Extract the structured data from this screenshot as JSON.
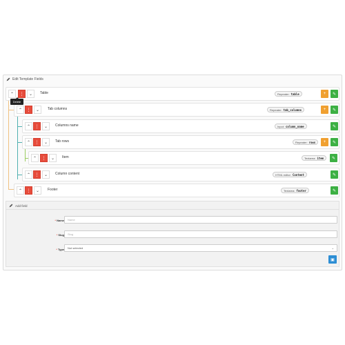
{
  "panel": {
    "title": "Edit Template Fields"
  },
  "tooltip": {
    "text": "Delete"
  },
  "rows": [
    {
      "label": "Table",
      "badge_type": "Repeater:",
      "badge_code": "table",
      "has_add": true
    },
    {
      "label": "Tab columns",
      "badge_type": "Repeater:",
      "badge_code": "tab_columns",
      "has_add": true
    },
    {
      "label": "Columns name",
      "badge_type": "Input:",
      "badge_code": "column_name",
      "has_add": false
    },
    {
      "label": "Tab rows",
      "badge_type": "Repeater:",
      "badge_code": "rows",
      "has_add": true
    },
    {
      "label": "Item",
      "badge_type": "Textarea:",
      "badge_code": "item",
      "has_add": false
    },
    {
      "label": "Column content",
      "badge_type": "HTML editor:",
      "badge_code": "Content",
      "has_add": false
    },
    {
      "label": "Footer",
      "badge_type": "Textarea:",
      "badge_code": "footer",
      "has_add": false
    }
  ],
  "add_field": {
    "title": "Add field",
    "name_label": "Name",
    "name_placeholder": "Name",
    "slug_label": "Slug",
    "slug_placeholder": "Slug",
    "type_label": "Type",
    "type_value": "Not selected"
  },
  "icons": {
    "up": "chevron-up-icon",
    "down": "chevron-down-icon",
    "delete": "trash-icon",
    "add": "plus-icon",
    "edit": "pencil-icon",
    "save": "save-icon"
  },
  "colors": {
    "delete": "#e74c3c",
    "add": "#f0a030",
    "edit": "#3cb043",
    "save": "#2d8ed4",
    "tree_orange": "#f0c080",
    "tree_teal": "#4fb0b0",
    "tree_green": "#9acd60",
    "tree_blue": "#7fb0e0"
  }
}
